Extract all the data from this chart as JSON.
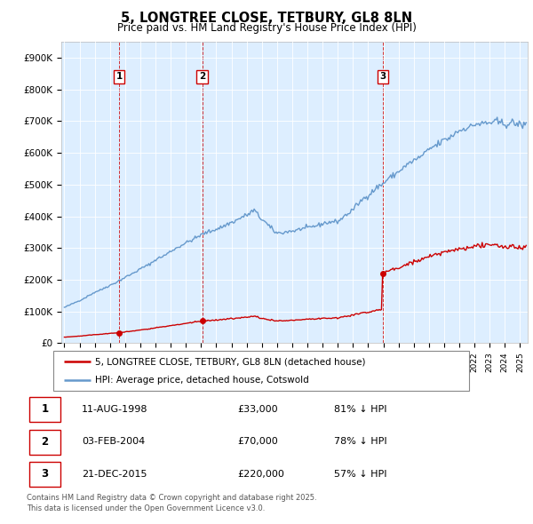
{
  "title": "5, LONGTREE CLOSE, TETBURY, GL8 8LN",
  "subtitle": "Price paid vs. HM Land Registry's House Price Index (HPI)",
  "background_color": "#ffffff",
  "plot_bg_color": "#ddeeff",
  "grid_color": "#ffffff",
  "hpi_color": "#6699cc",
  "price_color": "#cc0000",
  "dashed_color": "#cc0000",
  "ylim": [
    0,
    950000
  ],
  "yticks": [
    0,
    100000,
    200000,
    300000,
    400000,
    500000,
    600000,
    700000,
    800000,
    900000
  ],
  "ytick_labels": [
    "£0",
    "£100K",
    "£200K",
    "£300K",
    "£400K",
    "£500K",
    "£600K",
    "£700K",
    "£800K",
    "£900K"
  ],
  "xlim_start": 1994.8,
  "xlim_end": 2025.5,
  "transactions": [
    {
      "label": "1",
      "date_num": 1998.6,
      "price": 33000
    },
    {
      "label": "2",
      "date_num": 2004.08,
      "price": 70000
    },
    {
      "label": "3",
      "date_num": 2015.97,
      "price": 220000
    }
  ],
  "legend_entries": [
    {
      "label": "5, LONGTREE CLOSE, TETBURY, GL8 8LN (detached house)",
      "color": "#cc0000"
    },
    {
      "label": "HPI: Average price, detached house, Cotswold",
      "color": "#6699cc"
    }
  ],
  "table_rows": [
    {
      "num": "1",
      "date": "11-AUG-1998",
      "price": "£33,000",
      "hpi": "81% ↓ HPI"
    },
    {
      "num": "2",
      "date": "03-FEB-2004",
      "price": "£70,000",
      "hpi": "78% ↓ HPI"
    },
    {
      "num": "3",
      "date": "21-DEC-2015",
      "price": "£220,000",
      "hpi": "57% ↓ HPI"
    }
  ],
  "footer": "Contains HM Land Registry data © Crown copyright and database right 2025.\nThis data is licensed under the Open Government Licence v3.0."
}
